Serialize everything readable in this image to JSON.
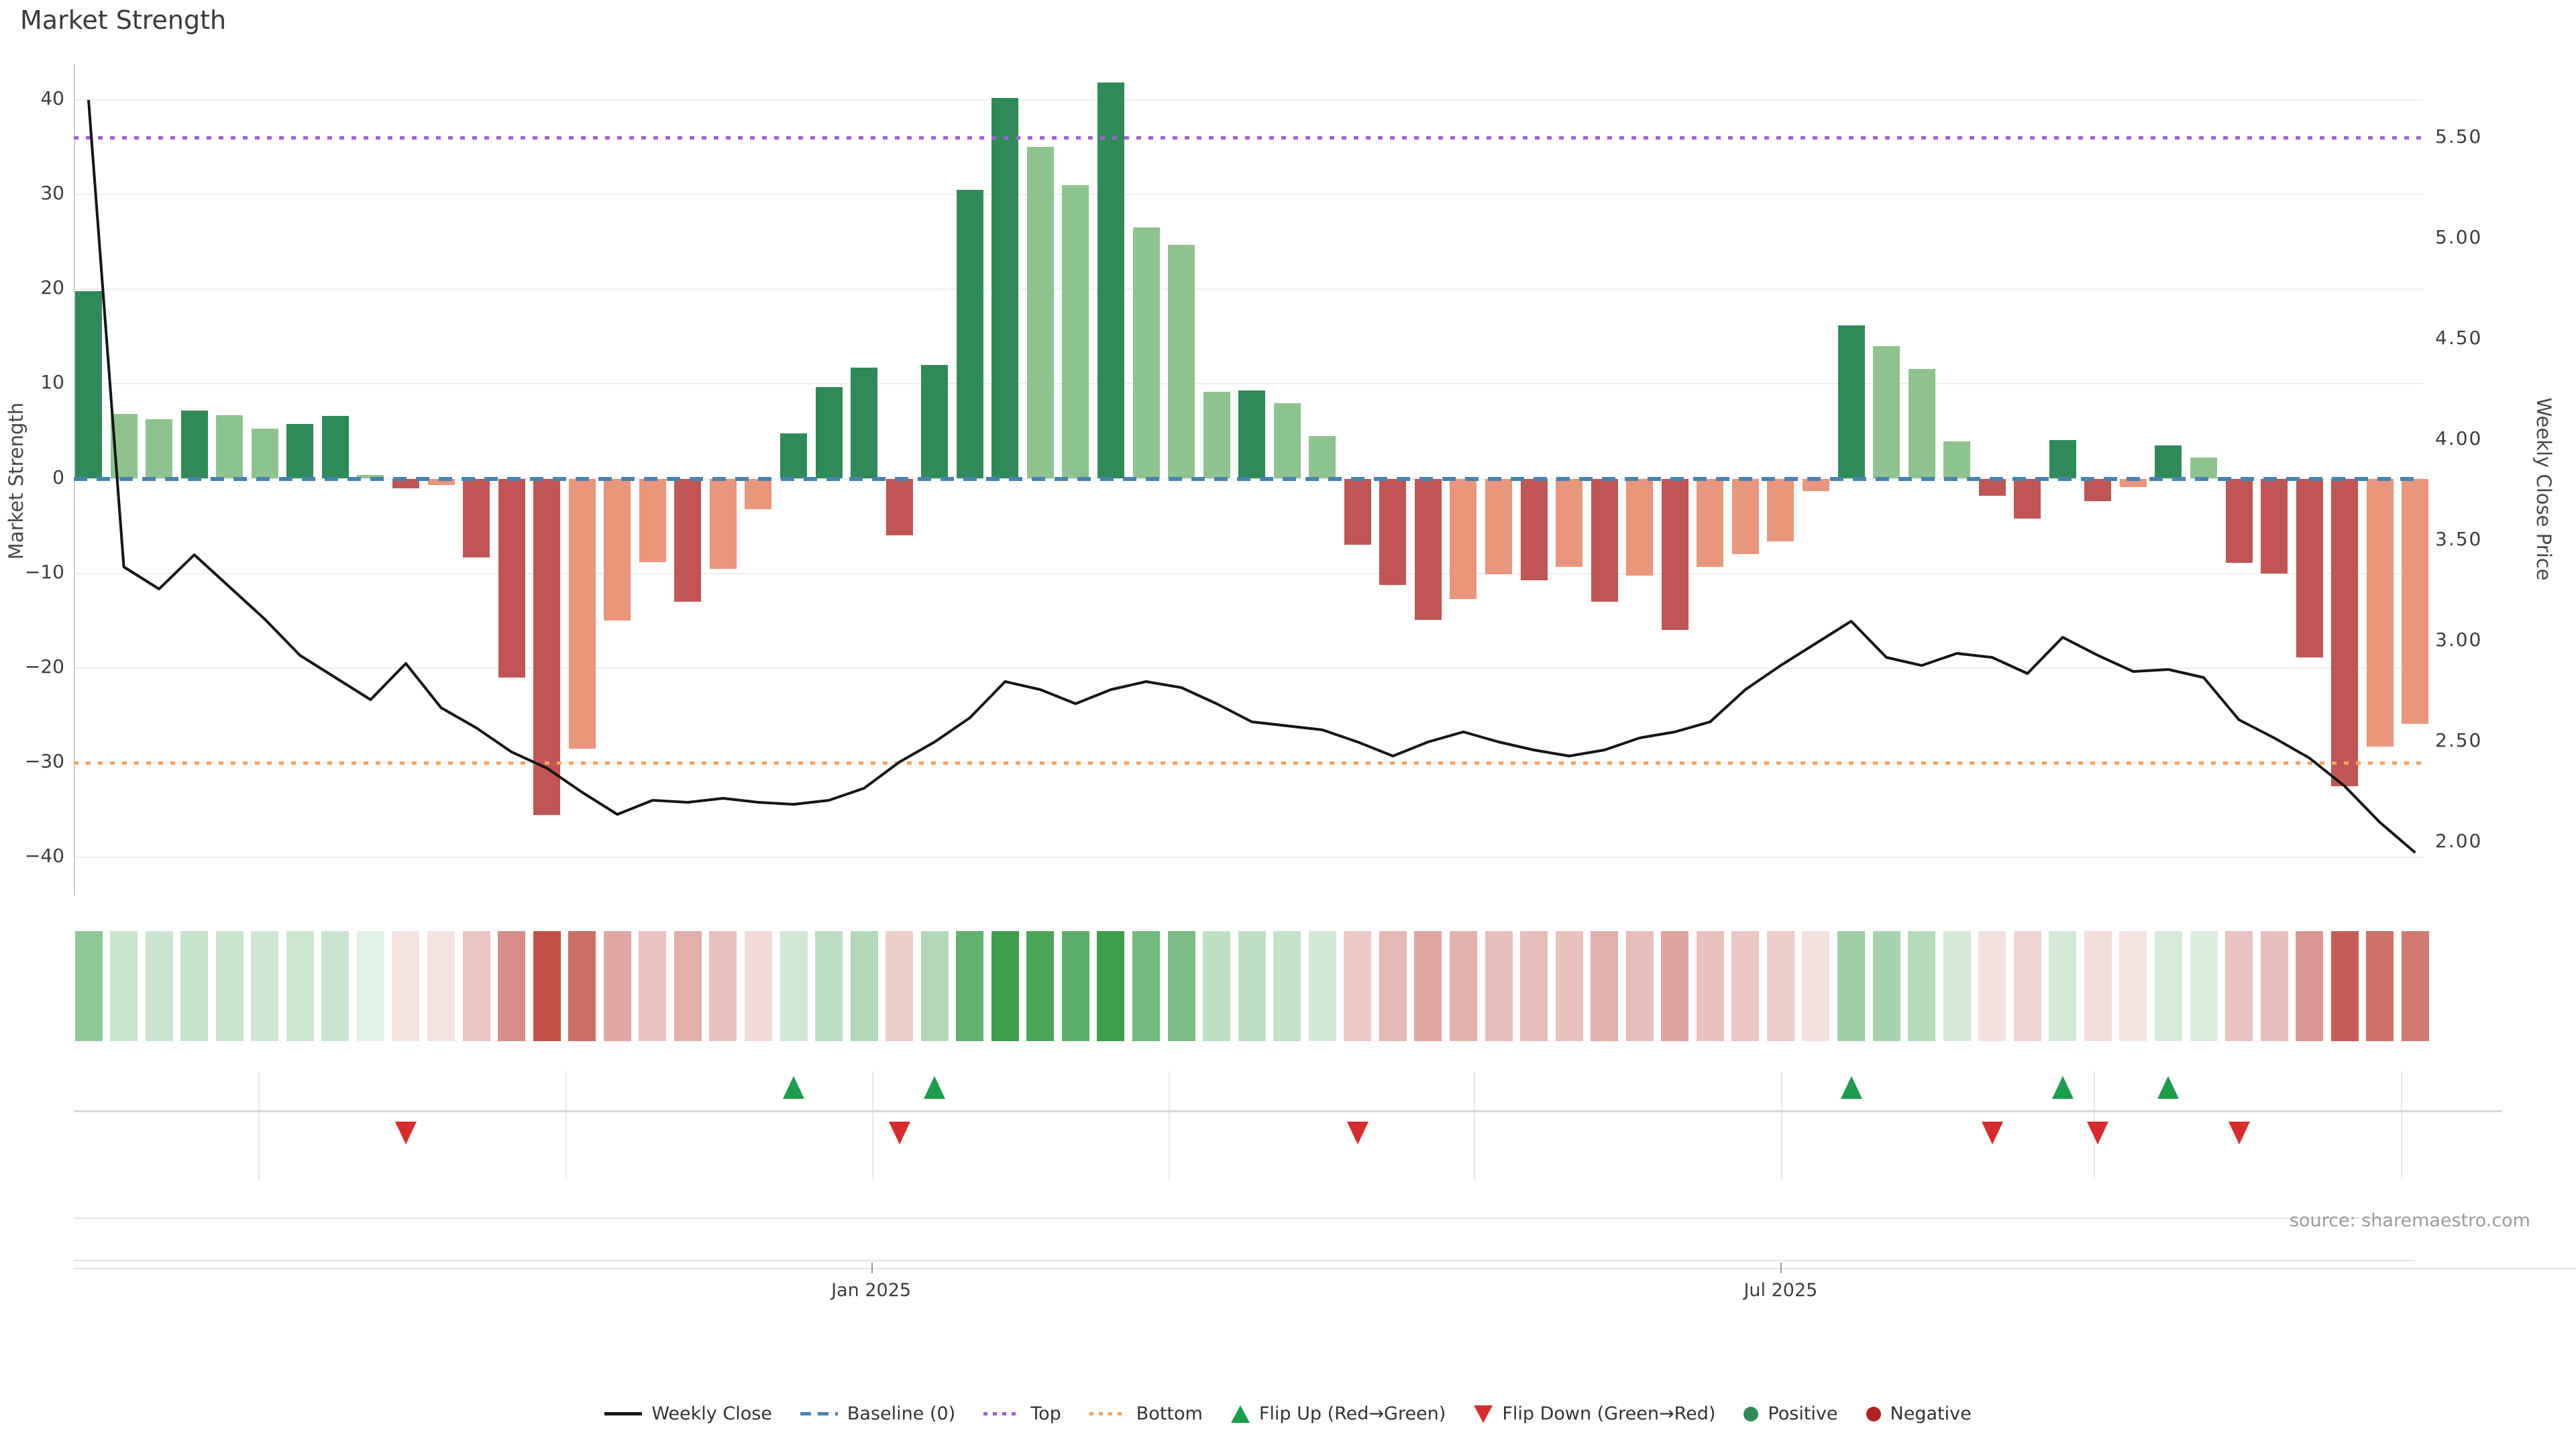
{
  "header": {
    "title": "Market Strength"
  },
  "source": "source: sharemaestro.com",
  "colors": {
    "bar_dark_green": "#2e8b57",
    "bar_light_green": "#8dc48d",
    "bar_dark_red": "#c15553",
    "bar_salmon": "#e9967a",
    "baseline": "#4682b4",
    "top_line": "#a05fd6",
    "bottom_line": "#f4a460",
    "price_line": "#151515",
    "flip_up": "#1a9e4b",
    "flip_down": "#d92b2b",
    "positive_dot": "#2e8b57",
    "negative_dot": "#b22222",
    "heat_green_rgb": "60,160,75",
    "heat_red_rgb": "190,70,60"
  },
  "chart_data": {
    "type": "bar+line",
    "title": "Market Strength",
    "x_unit": "week",
    "n_weeks": 67,
    "grid": "horizontal-on",
    "legend_position": "bottom-center",
    "left_axis": {
      "label": "Market Strength",
      "ticks": [
        "40",
        "30",
        "20",
        "10",
        "0",
        "−10",
        "−20",
        "−30",
        "−40"
      ],
      "tick_values": [
        40,
        30,
        20,
        10,
        0,
        -10,
        -20,
        -30,
        -40
      ],
      "range": [
        -44,
        44
      ]
    },
    "right_axis": {
      "label": "Weekly Close Price",
      "ticks": [
        "5.50",
        "5.00",
        "4.50",
        "4.00",
        "3.50",
        "3.00",
        "2.50",
        "2.00"
      ],
      "tick_values": [
        5.5,
        5.0,
        4.5,
        4.0,
        3.5,
        3.0,
        2.5,
        2.0
      ],
      "range": [
        1.74,
        5.87
      ]
    },
    "x_ticks": [
      {
        "label": "Jan 2025",
        "week": 22.2
      },
      {
        "label": "Jul 2025",
        "week": 48.0
      }
    ],
    "thresholds": {
      "baseline": 0,
      "top": 36,
      "bottom": -30
    },
    "series": [
      {
        "name": "Market Strength",
        "type": "bar",
        "axis": "left",
        "values": [
          19.8,
          6.8,
          6.3,
          7.2,
          6.7,
          5.3,
          5.8,
          6.6,
          0.4,
          -1.0,
          -0.7,
          -8.3,
          -21.0,
          -35.5,
          -28.5,
          -15.0,
          -8.8,
          -13.0,
          -9.5,
          -3.2,
          4.8,
          9.7,
          11.7,
          -6.0,
          12.0,
          30.5,
          40.2,
          35.0,
          31.0,
          41.8,
          26.5,
          24.7,
          9.2,
          9.3,
          8.0,
          4.5,
          -7.0,
          -11.2,
          -14.9,
          -12.7,
          -10.1,
          -10.7,
          -9.3,
          -13.0,
          -10.2,
          -16.0,
          -9.3,
          -8.0,
          -6.6,
          -1.3,
          16.2,
          14.0,
          11.6,
          3.9,
          -1.8,
          -4.2,
          4.1,
          -2.4,
          -0.9,
          3.5,
          2.2,
          -8.9,
          -10.0,
          -18.9,
          -32.5,
          -28.3,
          -25.9
        ]
      },
      {
        "name": "Weekly Close",
        "type": "line",
        "axis": "right",
        "values": [
          5.69,
          3.37,
          3.26,
          3.43,
          3.27,
          3.11,
          2.93,
          2.82,
          2.71,
          2.89,
          2.67,
          2.57,
          2.45,
          2.37,
          2.25,
          2.14,
          2.21,
          2.2,
          2.22,
          2.2,
          2.19,
          2.21,
          2.27,
          2.4,
          2.5,
          2.62,
          2.8,
          2.76,
          2.69,
          2.76,
          2.8,
          2.77,
          2.69,
          2.6,
          2.58,
          2.56,
          2.5,
          2.43,
          2.5,
          2.55,
          2.5,
          2.46,
          2.43,
          2.46,
          2.52,
          2.55,
          2.6,
          2.76,
          2.88,
          2.99,
          3.1,
          2.92,
          2.88,
          2.94,
          2.92,
          2.84,
          3.02,
          2.93,
          2.85,
          2.86,
          2.82,
          2.61,
          2.52,
          2.42,
          2.28,
          2.1,
          1.95
        ]
      }
    ],
    "flip_up_weeks": [
      20,
      24,
      50,
      56,
      59
    ],
    "flip_down_weeks": [
      9,
      23,
      36,
      54,
      57,
      61
    ],
    "heatmap": {
      "note": "one cell per week; tint = green for positive strength, red for negative, opacity scales with magnitude"
    }
  },
  "legend": {
    "items": [
      {
        "label": "Weekly Close",
        "swatch": "solid-line",
        "color": "#151515"
      },
      {
        "label": "Baseline (0)",
        "swatch": "dashed-line",
        "color": "#4682b4"
      },
      {
        "label": "Top",
        "swatch": "dotted-line",
        "color": "#a05fd6"
      },
      {
        "label": "Bottom",
        "swatch": "dotted-line",
        "color": "#f4a460"
      },
      {
        "label": "Flip Up (Red→Green)",
        "swatch": "triangle-up",
        "color": "#1a9e4b"
      },
      {
        "label": "Flip Down (Green→Red)",
        "swatch": "triangle-down",
        "color": "#d92b2b"
      },
      {
        "label": "Positive",
        "swatch": "dot",
        "color": "#2e8b57"
      },
      {
        "label": "Negative",
        "swatch": "dot",
        "color": "#b22222"
      }
    ]
  }
}
